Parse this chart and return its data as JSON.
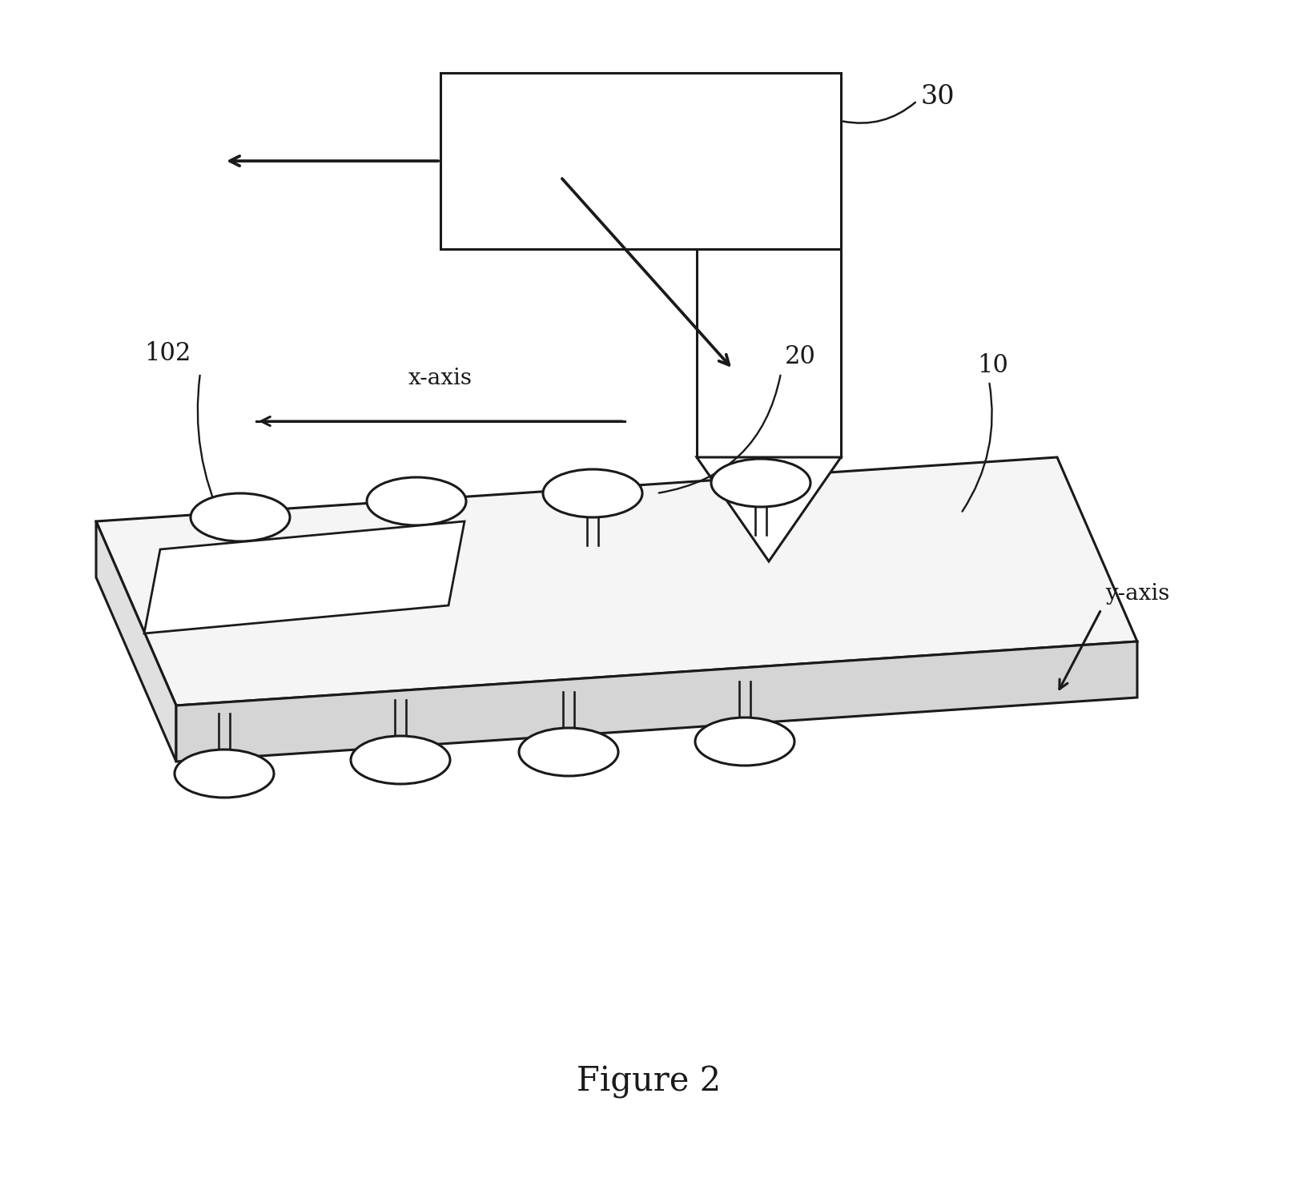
{
  "bg_color": "#ffffff",
  "line_color": "#1a1a1a",
  "line_width": 2.2,
  "fig_width": 16.27,
  "fig_height": 15.01,
  "title": "Figure 2",
  "label_30": "30",
  "label_20": "20",
  "label_10": "10",
  "label_102": "102",
  "label_xaxis": "x-axis",
  "label_yaxis": "y-axis",
  "plate_face_color": "#f5f5f5",
  "plate_side_color": "#e0e0e0",
  "plate_bottom_color": "#d5d5d5"
}
